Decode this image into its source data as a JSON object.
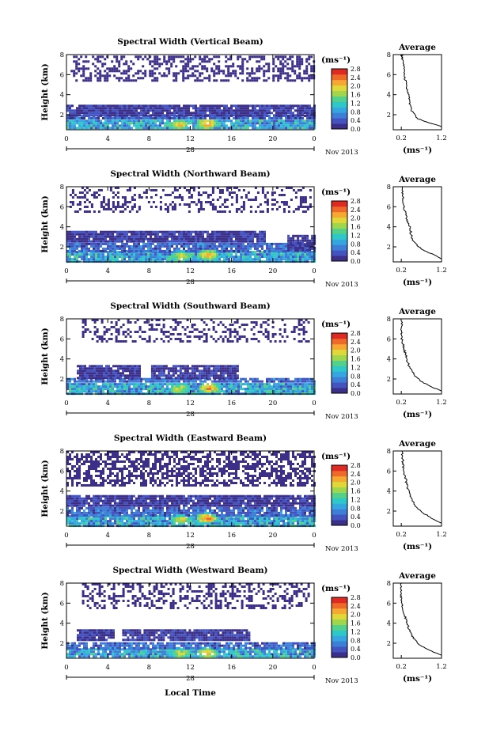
{
  "colors": {
    "colormap": [
      "#3b2f8a",
      "#4353c0",
      "#3d7fd6",
      "#36a6e0",
      "#2fc8c8",
      "#55d08a",
      "#9fd64e",
      "#e0d83a",
      "#f5a832",
      "#ef6a2a",
      "#dd2a22"
    ],
    "axis": "#000000"
  },
  "common": {
    "height_unit_label": "Height (km)",
    "x_ticks": [
      "0",
      "4",
      "8",
      "12",
      "16",
      "20",
      "0"
    ],
    "date_day": "28",
    "date_month": "Nov 2013",
    "colorbar_unit": "(ms⁻¹)",
    "colorbar_ticks": [
      "2.8",
      "2.4",
      "2.0",
      "1.6",
      "1.2",
      "0.8",
      "0.4",
      "0.0"
    ],
    "y_ticks": [
      "8",
      "6",
      "4",
      "2"
    ],
    "avg_title": "Average",
    "avg_x_ticks": [
      "0.2",
      "1.2"
    ],
    "avg_xlabel": "(ms⁻¹)",
    "local_time_label": "Local Time"
  },
  "chart_data": [
    {
      "type": "heatmap",
      "title": "Spectral Width (Vertical Beam)",
      "xlabel": "",
      "ylabel": "Height (km)",
      "xlim": [
        0,
        24
      ],
      "ylim": [
        0.5,
        8
      ],
      "value_range": [
        0.0,
        2.8
      ],
      "layers": [
        {
          "y0": 0.6,
          "y1": 1.5,
          "x0": 0,
          "x1": 24,
          "vmin": 0.4,
          "vmax": 1.4,
          "density": 0.96
        },
        {
          "y0": 1.5,
          "y1": 2.0,
          "x0": 0,
          "x1": 24,
          "vmin": 0.2,
          "vmax": 0.8,
          "density": 0.9
        },
        {
          "y0": 2.0,
          "y1": 3.0,
          "x0": 0,
          "x1": 24,
          "vmin": 0.0,
          "vmax": 0.4,
          "density": 0.92
        },
        {
          "y0": 5.4,
          "y1": 7.9,
          "x0": 0.4,
          "x1": 24,
          "vmin": 0.0,
          "vmax": 0.2,
          "density": 0.45
        }
      ],
      "hotspots": [
        {
          "x": 10.8,
          "y": 1.1,
          "v": 2.2
        },
        {
          "x": 13.5,
          "y": 1.2,
          "v": 2.6
        }
      ],
      "average_profile": {
        "x": [
          1.2,
          0.9,
          0.62,
          0.52,
          0.45,
          0.42,
          0.4,
          0.38,
          0.35,
          0.32,
          0.3,
          0.28,
          0.26,
          0.25,
          0.24,
          0.22,
          0.22
        ],
        "y": [
          0.8,
          1.2,
          1.6,
          2.0,
          2.5,
          3.0,
          3.5,
          4.0,
          4.5,
          5.0,
          5.5,
          6.0,
          6.5,
          7.0,
          7.5,
          7.8,
          8.0
        ],
        "xlim": [
          0.0,
          1.2
        ],
        "ylim": [
          0.5,
          8
        ]
      }
    },
    {
      "type": "heatmap",
      "title": "Spectral Width (Northward Beam)",
      "xlabel": "",
      "ylabel": "Height (km)",
      "xlim": [
        0,
        24
      ],
      "ylim": [
        0.5,
        8
      ],
      "value_range": [
        0.0,
        2.8
      ],
      "layers": [
        {
          "y0": 0.6,
          "y1": 1.6,
          "x0": 0,
          "x1": 24,
          "vmin": 0.4,
          "vmax": 1.4,
          "density": 0.96
        },
        {
          "y0": 1.6,
          "y1": 2.4,
          "x0": 0,
          "x1": 24,
          "vmin": 0.2,
          "vmax": 0.8,
          "density": 0.9
        },
        {
          "y0": 2.4,
          "y1": 3.6,
          "x0": 0,
          "x1": 19.2,
          "vmin": 0.0,
          "vmax": 0.4,
          "density": 0.92
        },
        {
          "y0": 1.6,
          "y1": 3.2,
          "x0": 21.4,
          "x1": 24,
          "vmin": 0.0,
          "vmax": 0.4,
          "density": 0.8
        },
        {
          "y0": 5.4,
          "y1": 8.0,
          "x0": 0.3,
          "x1": 24,
          "vmin": 0.0,
          "vmax": 0.2,
          "density": 0.32
        }
      ],
      "hotspots": [
        {
          "x": 11.0,
          "y": 1.2,
          "v": 2.0
        },
        {
          "x": 13.6,
          "y": 1.3,
          "v": 2.4
        }
      ],
      "average_profile": {
        "x": [
          1.2,
          0.95,
          0.7,
          0.55,
          0.48,
          0.44,
          0.42,
          0.38,
          0.34,
          0.3,
          0.28,
          0.26,
          0.24,
          0.22,
          0.22
        ],
        "y": [
          0.8,
          1.3,
          1.8,
          2.3,
          2.8,
          3.3,
          3.8,
          4.3,
          4.8,
          5.3,
          5.8,
          6.3,
          6.8,
          7.4,
          8.0
        ],
        "xlim": [
          0.0,
          1.2
        ],
        "ylim": [
          0.5,
          8
        ]
      }
    },
    {
      "type": "heatmap",
      "title": "Spectral Width (Southward Beam)",
      "xlabel": "",
      "ylabel": "Height (km)",
      "xlim": [
        0,
        24
      ],
      "ylim": [
        0.5,
        8
      ],
      "value_range": [
        0.0,
        2.8
      ],
      "layers": [
        {
          "y0": 0.6,
          "y1": 1.6,
          "x0": 0,
          "x1": 24,
          "vmin": 0.4,
          "vmax": 1.4,
          "density": 0.95
        },
        {
          "y0": 1.6,
          "y1": 2.1,
          "x0": 0,
          "x1": 24,
          "vmin": 0.2,
          "vmax": 0.8,
          "density": 0.85
        },
        {
          "y0": 2.1,
          "y1": 3.4,
          "x0": 1.0,
          "x1": 7.2,
          "vmin": 0.0,
          "vmax": 0.4,
          "density": 0.92
        },
        {
          "y0": 2.1,
          "y1": 3.4,
          "x0": 8.2,
          "x1": 16.6,
          "vmin": 0.0,
          "vmax": 0.4,
          "density": 0.92
        },
        {
          "y0": 5.6,
          "y1": 8.0,
          "x0": 1.5,
          "x1": 23.5,
          "vmin": 0.0,
          "vmax": 0.2,
          "density": 0.3
        }
      ],
      "hotspots": [
        {
          "x": 10.8,
          "y": 1.1,
          "v": 2.1
        },
        {
          "x": 13.7,
          "y": 1.2,
          "v": 2.5
        }
      ],
      "average_profile": {
        "x": [
          1.2,
          0.9,
          0.68,
          0.55,
          0.46,
          0.4,
          0.35,
          0.32,
          0.28,
          0.25,
          0.22,
          0.2,
          0.2,
          0.22,
          0.2
        ],
        "y": [
          0.8,
          1.3,
          1.8,
          2.3,
          2.8,
          3.3,
          3.8,
          4.3,
          4.8,
          5.3,
          5.8,
          6.3,
          6.8,
          7.4,
          8.0
        ],
        "xlim": [
          0.0,
          1.2
        ],
        "ylim": [
          0.5,
          8
        ]
      }
    },
    {
      "type": "heatmap",
      "title": "Spectral Width (Eastward Beam)",
      "xlabel": "",
      "ylabel": "Height (km)",
      "xlim": [
        0,
        24
      ],
      "ylim": [
        0.5,
        8
      ],
      "value_range": [
        0.0,
        2.8
      ],
      "layers": [
        {
          "y0": 0.6,
          "y1": 1.6,
          "x0": 0,
          "x1": 24,
          "vmin": 0.4,
          "vmax": 1.4,
          "density": 0.96
        },
        {
          "y0": 1.6,
          "y1": 2.4,
          "x0": 0,
          "x1": 24,
          "vmin": 0.2,
          "vmax": 0.8,
          "density": 0.9
        },
        {
          "y0": 2.4,
          "y1": 3.6,
          "x0": 0,
          "x1": 24,
          "vmin": 0.0,
          "vmax": 0.4,
          "density": 0.92
        },
        {
          "y0": 4.6,
          "y1": 8.0,
          "x0": 0,
          "x1": 24,
          "vmin": 0.0,
          "vmax": 0.2,
          "density": 0.55
        }
      ],
      "hotspots": [
        {
          "x": 11.0,
          "y": 1.2,
          "v": 2.2
        },
        {
          "x": 13.5,
          "y": 1.4,
          "v": 2.6
        }
      ],
      "average_profile": {
        "x": [
          1.2,
          0.95,
          0.75,
          0.6,
          0.5,
          0.44,
          0.4,
          0.36,
          0.33,
          0.3,
          0.27,
          0.25,
          0.24,
          0.23,
          0.22
        ],
        "y": [
          0.8,
          1.3,
          1.8,
          2.3,
          2.8,
          3.3,
          3.8,
          4.3,
          4.8,
          5.3,
          5.8,
          6.3,
          6.8,
          7.4,
          8.0
        ],
        "xlim": [
          0.0,
          1.2
        ],
        "ylim": [
          0.5,
          8
        ]
      }
    },
    {
      "type": "heatmap",
      "title": "Spectral Width (Westward Beam)",
      "xlabel": "",
      "ylabel": "Height (km)",
      "xlim": [
        0,
        24
      ],
      "ylim": [
        0.5,
        8
      ],
      "value_range": [
        0.0,
        2.8
      ],
      "layers": [
        {
          "y0": 0.6,
          "y1": 1.5,
          "x0": 0,
          "x1": 24,
          "vmin": 0.4,
          "vmax": 1.4,
          "density": 0.94
        },
        {
          "y0": 1.5,
          "y1": 2.1,
          "x0": 0,
          "x1": 24,
          "vmin": 0.2,
          "vmax": 0.8,
          "density": 0.85
        },
        {
          "y0": 2.2,
          "y1": 3.4,
          "x0": 1.0,
          "x1": 4.6,
          "vmin": 0.0,
          "vmax": 0.4,
          "density": 0.92
        },
        {
          "y0": 2.2,
          "y1": 3.4,
          "x0": 5.4,
          "x1": 17.8,
          "vmin": 0.0,
          "vmax": 0.4,
          "density": 0.92
        },
        {
          "y0": 5.4,
          "y1": 8.0,
          "x0": 1.5,
          "x1": 23.5,
          "vmin": 0.0,
          "vmax": 0.2,
          "density": 0.38
        }
      ],
      "hotspots": [
        {
          "x": 11.0,
          "y": 1.1,
          "v": 2.0
        },
        {
          "x": 13.6,
          "y": 1.1,
          "v": 2.3
        }
      ],
      "average_profile": {
        "x": [
          1.2,
          0.9,
          0.68,
          0.55,
          0.46,
          0.4,
          0.36,
          0.32,
          0.28,
          0.25,
          0.22,
          0.2,
          0.2,
          0.2,
          0.2
        ],
        "y": [
          0.8,
          1.3,
          1.8,
          2.3,
          2.8,
          3.3,
          3.8,
          4.3,
          4.8,
          5.3,
          5.8,
          6.3,
          6.8,
          7.4,
          8.0
        ],
        "xlim": [
          0.0,
          1.2
        ],
        "ylim": [
          0.5,
          8
        ]
      }
    }
  ]
}
